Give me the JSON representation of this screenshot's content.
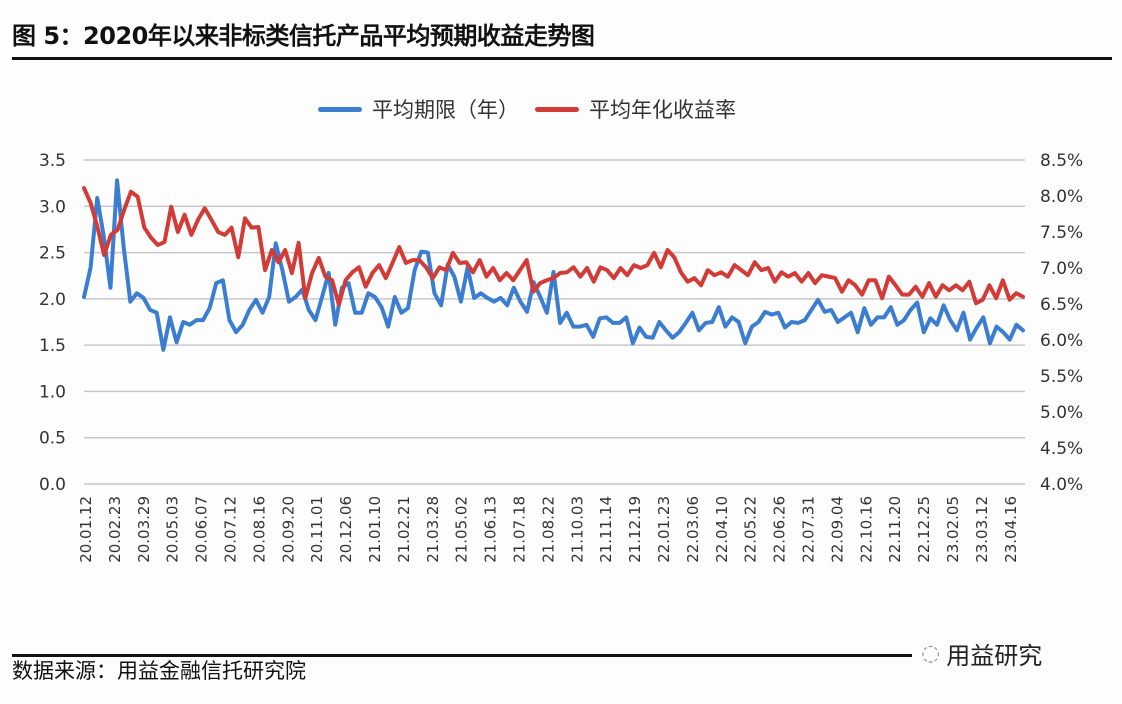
{
  "title": "图 5：2020年以来非标类信托产品平均预期收益走势图",
  "source": "数据来源：用益金融信托研究院",
  "watermark": "用益研究",
  "chart_data": {
    "type": "line",
    "title": "图 5：2020年以来非标类信托产品平均预期收益走势图",
    "legend_position": "top",
    "grid": true,
    "x_tick_labels": [
      "20.01.12",
      "20.02.23",
      "20.03.29",
      "20.05.03",
      "20.06.07",
      "20.07.12",
      "20.08.16",
      "20.09.20",
      "20.11.01",
      "20.12.06",
      "21.01.10",
      "21.02.21",
      "21.03.28",
      "21.05.02",
      "21.06.13",
      "21.07.18",
      "21.08.22",
      "21.10.03",
      "21.11.14",
      "21.12.19",
      "22.01.23",
      "22.03.06",
      "22.04.10",
      "22.05.22",
      "22.06.26",
      "22.07.31",
      "22.09.04",
      "22.10.16",
      "22.11.20",
      "22.12.25",
      "23.02.05",
      "23.03.12",
      "23.04.16"
    ],
    "y_left": {
      "ylim": [
        0,
        3.5
      ],
      "ticks": [
        "0.0",
        "0.5",
        "1.0",
        "1.5",
        "2.0",
        "2.5",
        "3.0",
        "3.5"
      ]
    },
    "y_right": {
      "ylim": [
        4.0,
        8.5
      ],
      "ticks": [
        "4.0%",
        "4.5%",
        "5.0%",
        "5.5%",
        "6.0%",
        "6.5%",
        "7.0%",
        "7.5%",
        "8.0%",
        "8.5%"
      ]
    },
    "series": [
      {
        "name": "平均期限（年）",
        "axis": "left",
        "color": "#3b7dd0",
        "values": [
          2.02,
          2.34,
          3.09,
          2.67,
          2.12,
          3.28,
          2.56,
          1.97,
          2.06,
          2.01,
          1.88,
          1.85,
          1.45,
          1.8,
          1.53,
          1.75,
          1.72,
          1.77,
          1.77,
          1.9,
          2.17,
          2.2,
          1.77,
          1.64,
          1.72,
          1.88,
          1.99,
          1.85,
          2.02,
          2.6,
          2.31,
          1.97,
          2.02,
          2.1,
          1.88,
          1.77,
          2.02,
          2.28,
          1.72,
          2.12,
          2.17,
          1.85,
          1.85,
          2.06,
          2.02,
          1.91,
          1.7,
          2.02,
          1.85,
          1.9,
          2.31,
          2.51,
          2.5,
          2.06,
          1.93,
          2.37,
          2.24,
          1.97,
          2.34,
          2.01,
          2.06,
          2.01,
          1.97,
          2.01,
          1.93,
          2.12,
          1.97,
          1.86,
          2.18,
          2.02,
          1.85,
          2.29,
          1.74,
          1.85,
          1.7,
          1.7,
          1.72,
          1.59,
          1.79,
          1.8,
          1.74,
          1.74,
          1.8,
          1.52,
          1.69,
          1.59,
          1.58,
          1.75,
          1.66,
          1.58,
          1.64,
          1.74,
          1.85,
          1.66,
          1.74,
          1.75,
          1.91,
          1.7,
          1.8,
          1.75,
          1.52,
          1.7,
          1.75,
          1.86,
          1.83,
          1.85,
          1.69,
          1.75,
          1.74,
          1.77,
          1.88,
          1.99,
          1.86,
          1.88,
          1.75,
          1.8,
          1.85,
          1.64,
          1.9,
          1.72,
          1.8,
          1.8,
          1.91,
          1.72,
          1.77,
          1.88,
          1.96,
          1.64,
          1.79,
          1.72,
          1.93,
          1.77,
          1.66,
          1.85,
          1.56,
          1.69,
          1.8,
          1.52,
          1.7,
          1.64,
          1.56,
          1.72,
          1.66
        ]
      },
      {
        "name": "平均年化收益率",
        "axis": "right",
        "color": "#d23b36",
        "values": [
          8.11,
          7.9,
          7.57,
          7.18,
          7.46,
          7.53,
          7.81,
          8.06,
          7.99,
          7.56,
          7.42,
          7.32,
          7.36,
          7.85,
          7.5,
          7.74,
          7.46,
          7.67,
          7.83,
          7.67,
          7.5,
          7.46,
          7.56,
          7.15,
          7.69,
          7.56,
          7.57,
          6.97,
          7.25,
          7.08,
          7.25,
          6.93,
          7.35,
          6.58,
          6.93,
          7.14,
          6.88,
          6.83,
          6.49,
          6.83,
          6.94,
          7.01,
          6.74,
          6.93,
          7.04,
          6.86,
          7.07,
          7.29,
          7.07,
          7.11,
          7.11,
          7.01,
          6.86,
          7.01,
          6.97,
          7.21,
          7.07,
          7.08,
          6.94,
          7.11,
          6.88,
          7.0,
          6.83,
          6.93,
          6.83,
          6.97,
          7.11,
          6.67,
          6.79,
          6.83,
          6.86,
          6.93,
          6.94,
          7.01,
          6.88,
          7.0,
          6.81,
          7.01,
          6.97,
          6.86,
          7.0,
          6.9,
          7.04,
          7.0,
          7.04,
          7.21,
          7.01,
          7.25,
          7.15,
          6.94,
          6.81,
          6.86,
          6.76,
          6.97,
          6.9,
          6.94,
          6.88,
          7.04,
          6.97,
          6.9,
          7.08,
          6.97,
          7.0,
          6.81,
          6.94,
          6.88,
          6.93,
          6.81,
          6.93,
          6.79,
          6.9,
          6.88,
          6.86,
          6.67,
          6.83,
          6.76,
          6.63,
          6.83,
          6.83,
          6.58,
          6.88,
          6.76,
          6.63,
          6.63,
          6.74,
          6.6,
          6.79,
          6.6,
          6.76,
          6.69,
          6.76,
          6.69,
          6.81,
          6.51,
          6.56,
          6.76,
          6.58,
          6.83,
          6.56,
          6.65,
          6.6
        ]
      }
    ]
  }
}
